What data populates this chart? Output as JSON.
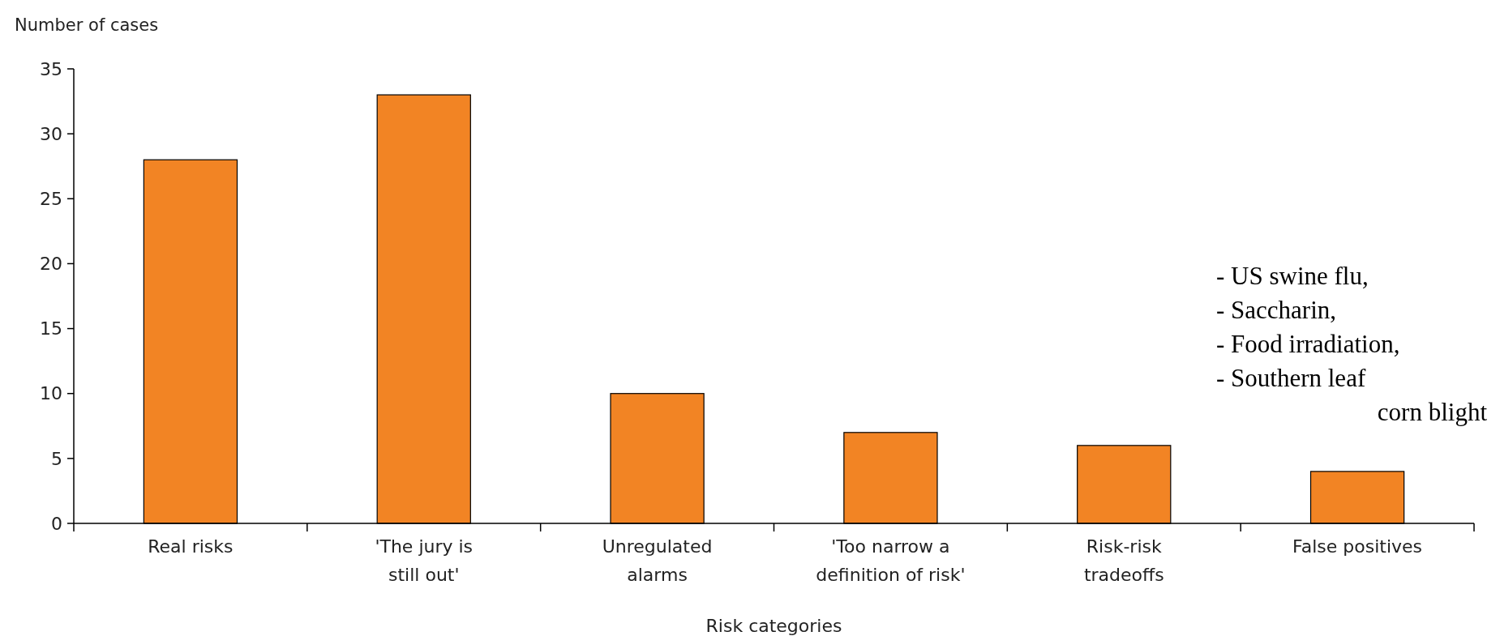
{
  "chart_data": {
    "type": "bar",
    "ylabel": "Number of cases",
    "xlabel": "Risk categories",
    "categories": [
      "Real risks",
      "'The jury is\nstill out'",
      "Unregulated\nalarms",
      "'Too narrow a\ndefinition of risk'",
      "Risk-risk\ntradeoffs",
      "False positives"
    ],
    "values": [
      28,
      33,
      10,
      7,
      6,
      4
    ],
    "color": "#f28424",
    "ylim": [
      0,
      35
    ],
    "yticks": [
      0,
      5,
      10,
      15,
      20,
      25,
      30,
      35
    ],
    "grid": false,
    "annotations": [
      "- US swine flu,\n- Saccharin,\n- Food irradiation,\n- Southern leaf\ncorn blight"
    ]
  }
}
